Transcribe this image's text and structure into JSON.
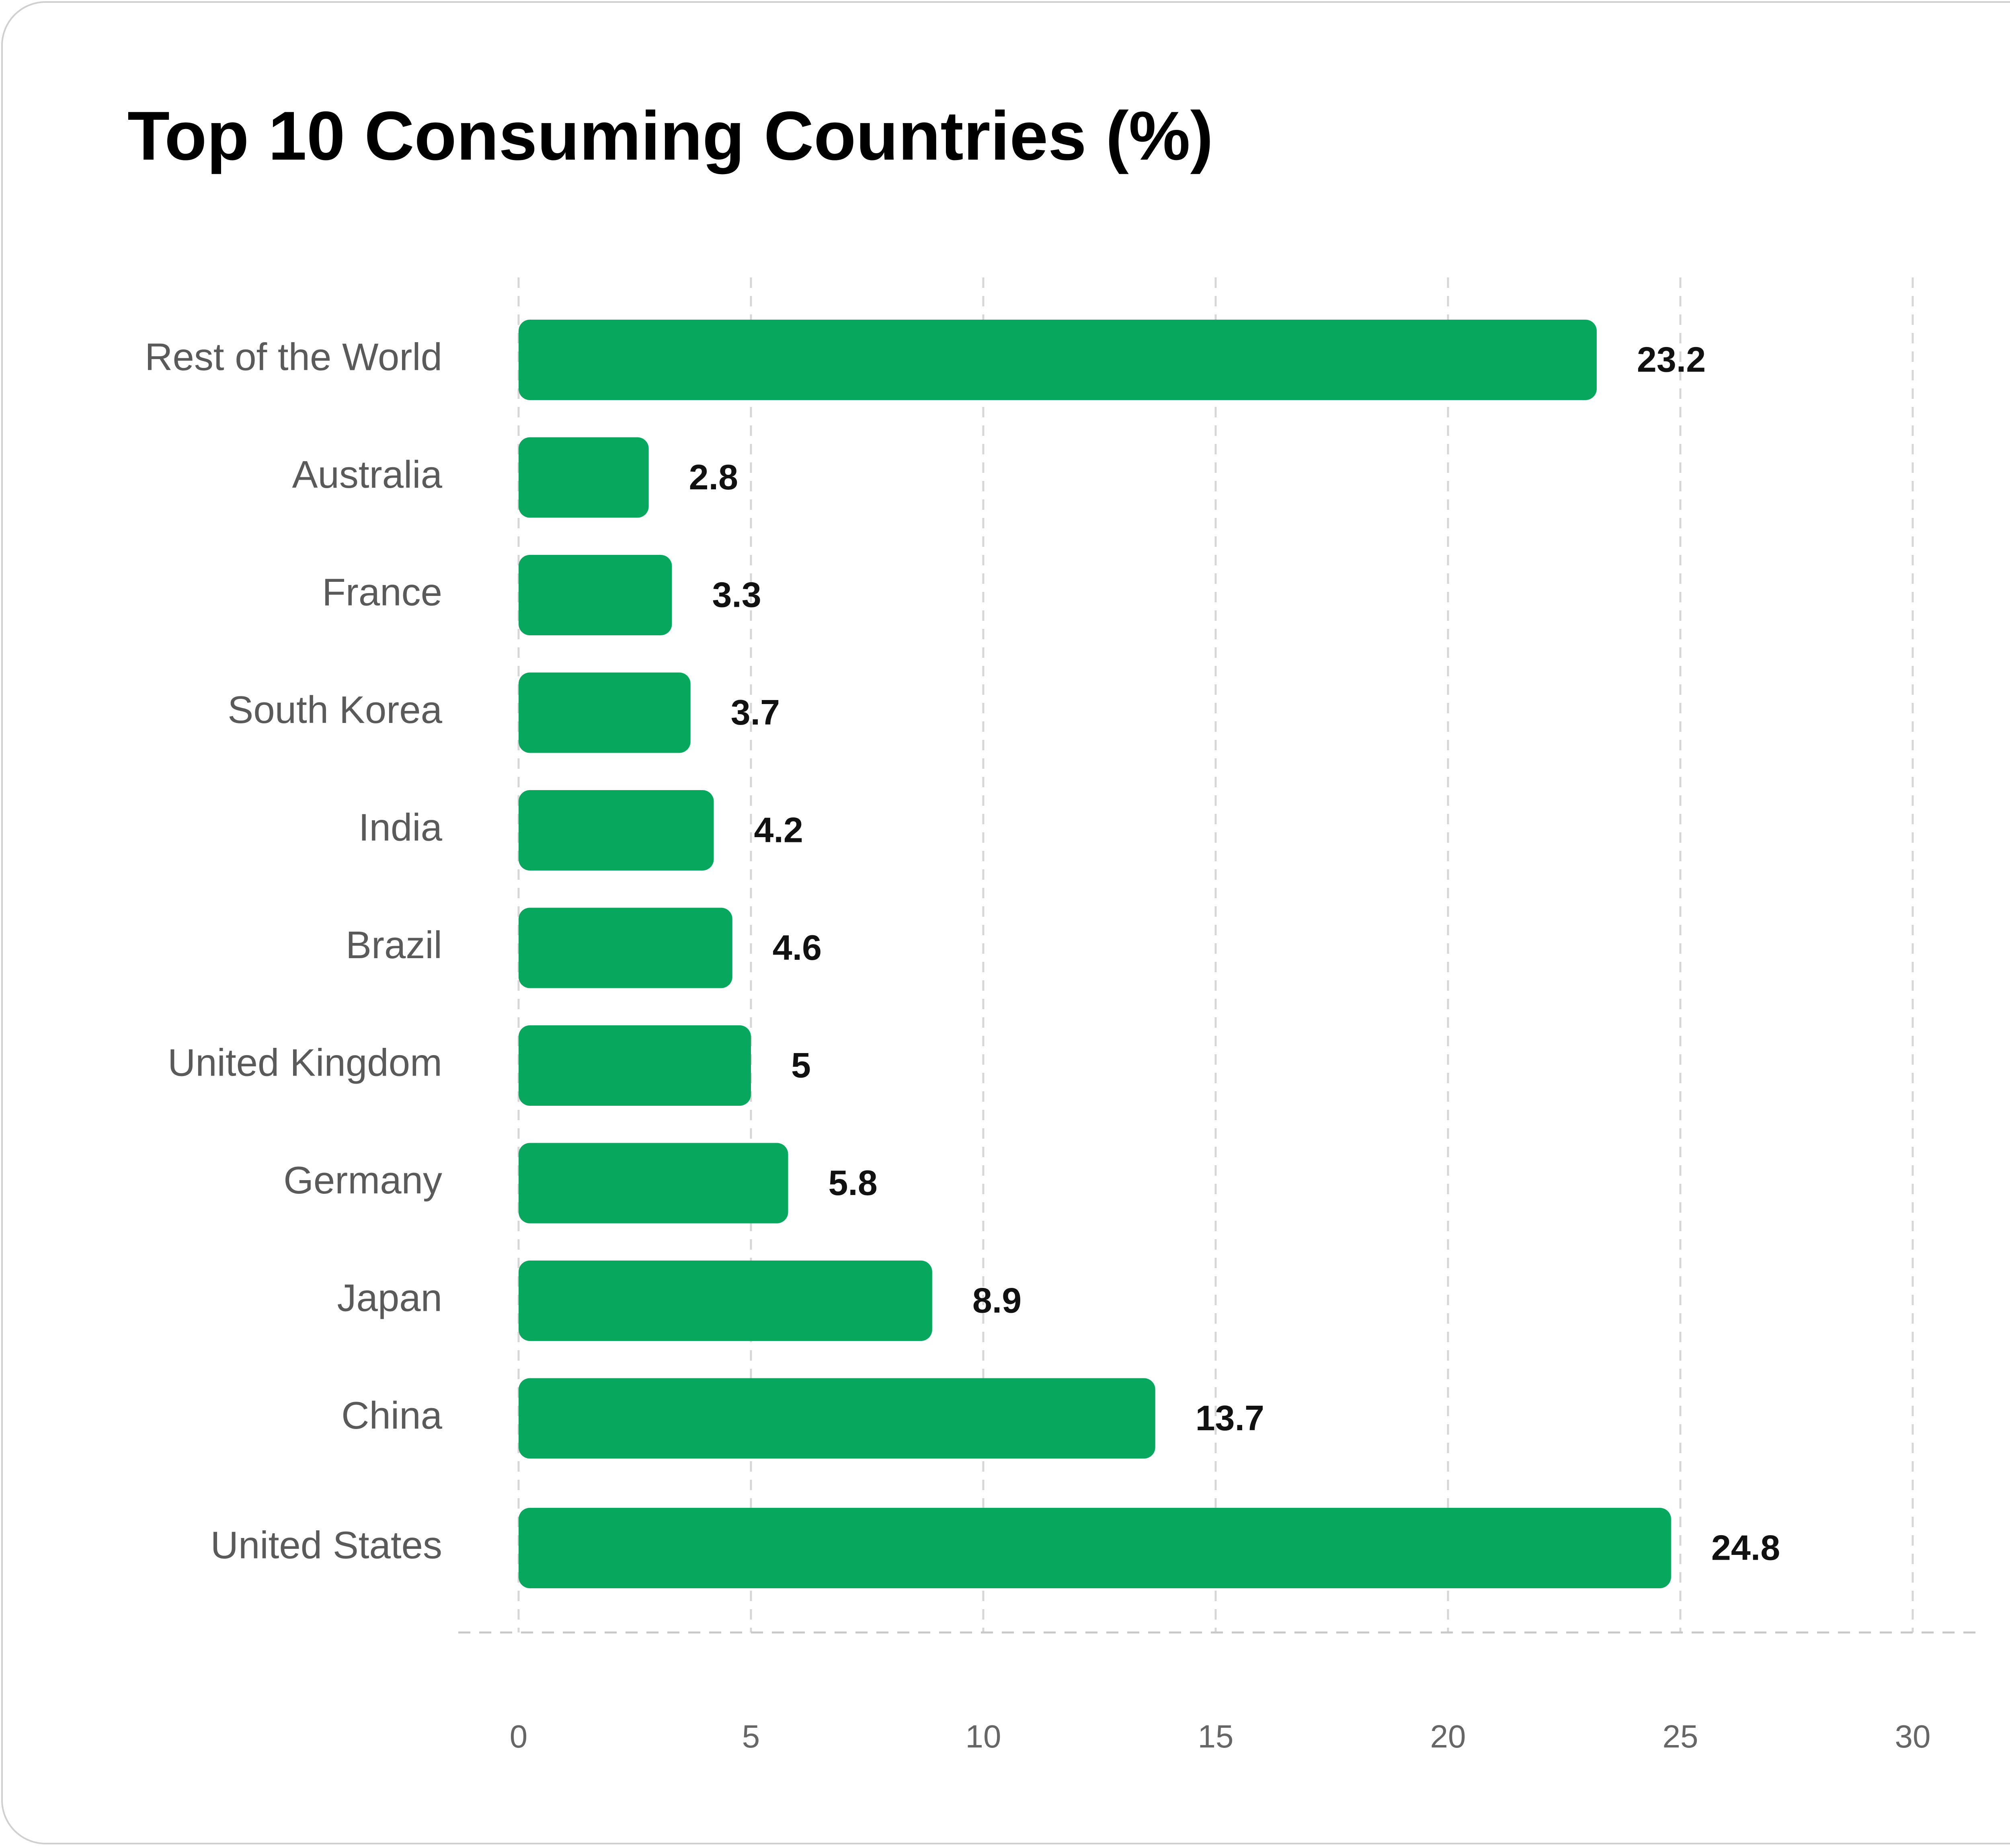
{
  "chart_data": {
    "type": "bar",
    "orientation": "horizontal",
    "title": "Top 10 Consuming Countries (%)",
    "xlabel": "",
    "ylabel": "",
    "categories": [
      "Rest of the World",
      "Australia",
      "France",
      "South Korea",
      "India",
      "Brazil",
      "United Kingdom",
      "Germany",
      "Japan",
      "China",
      "United States"
    ],
    "values": [
      23.2,
      2.8,
      3.3,
      3.7,
      4.2,
      4.6,
      5,
      5.8,
      8.9,
      13.7,
      24.8
    ],
    "value_labels": [
      "23.2",
      "2.8",
      "3.3",
      "3.7",
      "4.2",
      "4.6",
      "5",
      "5.8",
      "8.9",
      "13.7",
      "24.8"
    ],
    "xlim": [
      0,
      30
    ],
    "xticks": [
      0,
      5,
      10,
      15,
      20,
      25,
      30
    ],
    "xtick_labels": [
      "0",
      "5",
      "10",
      "15",
      "20",
      "25",
      "30"
    ],
    "grid": "vertical dashed",
    "legend": "none",
    "bar_color": "#07a85d"
  }
}
